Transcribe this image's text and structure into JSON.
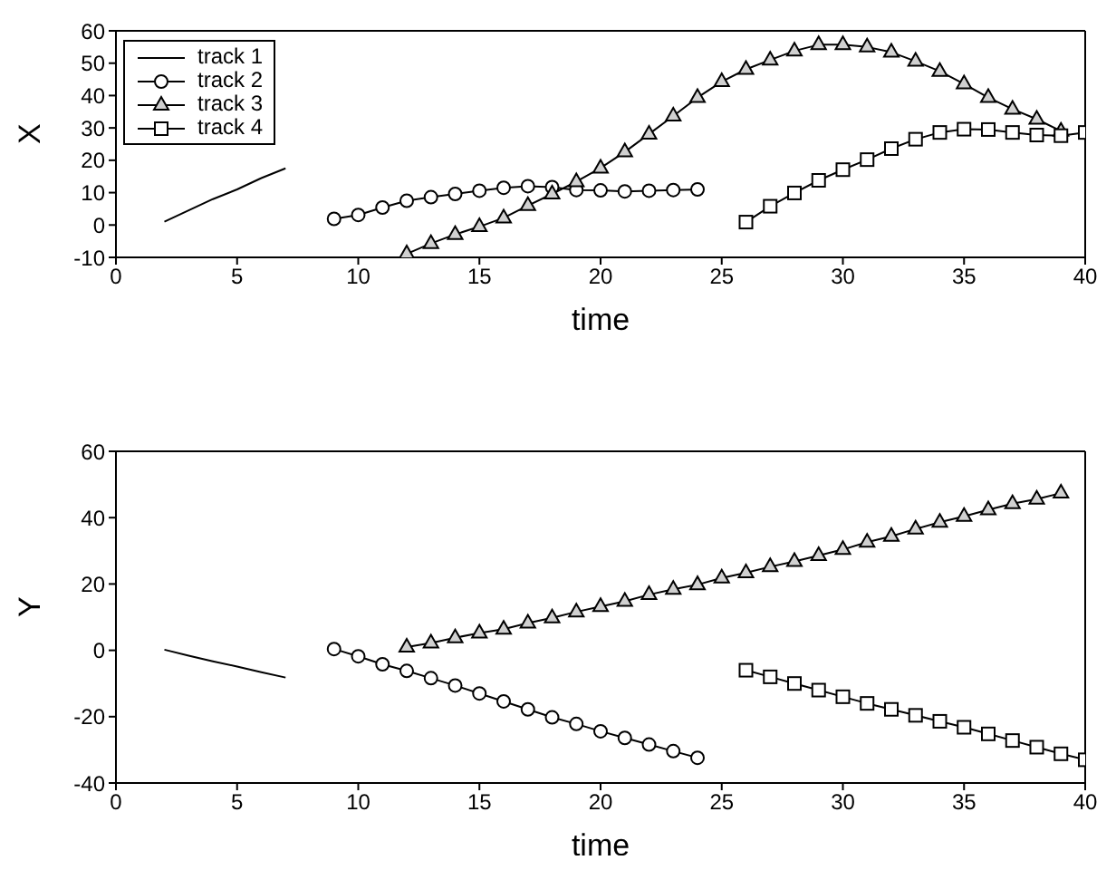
{
  "chart_data": [
    {
      "type": "line",
      "xlabel": "time",
      "ylabel": "X",
      "xlim": [
        0,
        40
      ],
      "ylim": [
        -10,
        60
      ],
      "xticks": [
        0,
        5,
        10,
        15,
        20,
        25,
        30,
        35,
        40
      ],
      "yticks": [
        -10,
        0,
        10,
        20,
        30,
        40,
        50,
        60
      ],
      "legend": "top left",
      "grid": false,
      "line_style": "solid",
      "series": [
        {
          "name": "track 1",
          "color": "#000000",
          "marker": "none",
          "x": [
            2,
            3,
            4,
            5,
            6,
            7
          ],
          "values": [
            1,
            4.5,
            8,
            11,
            14.5,
            17.5
          ]
        },
        {
          "name": "track 2",
          "color": "#000000",
          "marker": "circle",
          "x": [
            9,
            10,
            11,
            12,
            13,
            14,
            15,
            16,
            17,
            18,
            19,
            20,
            21,
            22,
            23,
            24
          ],
          "values": [
            1.9,
            3.1,
            5.4,
            7.5,
            8.6,
            9.6,
            10.6,
            11.5,
            12,
            11.7,
            10.8,
            10.7,
            10.4,
            10.6,
            10.8,
            11
          ]
        },
        {
          "name": "track 3",
          "color": "#000000",
          "marker": "triangle",
          "x": [
            12,
            13,
            14,
            15,
            16,
            17,
            18,
            19,
            20,
            21,
            22,
            23,
            24,
            25,
            26,
            27,
            28,
            29,
            30,
            31,
            32,
            33,
            34,
            35,
            36,
            37,
            38,
            39
          ],
          "values": [
            -8.9,
            -5.7,
            -2.9,
            -0.5,
            2.2,
            6,
            9.6,
            13.4,
            17.6,
            22.6,
            28.1,
            33.7,
            39.4,
            44.3,
            48.1,
            51,
            53.8,
            55.7,
            55.7,
            55,
            53.4,
            50.6,
            47.5,
            43.6,
            39.4,
            35.8,
            32.7,
            29
          ]
        },
        {
          "name": "track 4",
          "color": "#000000",
          "marker": "square",
          "x": [
            26,
            27,
            28,
            29,
            30,
            31,
            32,
            33,
            34,
            35,
            36,
            37,
            38,
            39,
            40
          ],
          "values": [
            0.9,
            5.8,
            9.9,
            13.8,
            17.1,
            20.2,
            23.6,
            26.5,
            28.6,
            29.6,
            29.5,
            28.6,
            27.8,
            27.6,
            28.6
          ]
        }
      ]
    },
    {
      "type": "line",
      "xlabel": "time",
      "ylabel": "Y",
      "xlim": [
        0,
        40
      ],
      "ylim": [
        -40,
        60
      ],
      "xticks": [
        0,
        5,
        10,
        15,
        20,
        25,
        30,
        35,
        40
      ],
      "yticks": [
        -40,
        -20,
        0,
        20,
        40,
        60
      ],
      "grid": false,
      "line_style": "solid",
      "series": [
        {
          "color": "#000000",
          "marker": "none",
          "x": [
            2,
            3,
            4,
            5,
            6,
            7
          ],
          "values": [
            0.2,
            -1.6,
            -3.3,
            -4.9,
            -6.6,
            -8.2
          ]
        },
        {
          "color": "#000000",
          "marker": "circle",
          "x": [
            9,
            10,
            11,
            12,
            13,
            14,
            15,
            16,
            17,
            18,
            19,
            20,
            21,
            22,
            23,
            24
          ],
          "values": [
            0.4,
            -1.8,
            -4.2,
            -6.2,
            -8.4,
            -10.6,
            -13,
            -15.4,
            -17.8,
            -20.2,
            -22.2,
            -24.4,
            -26.4,
            -28.4,
            -30.4,
            -32.4
          ]
        },
        {
          "color": "#000000",
          "marker": "triangle",
          "x": [
            12,
            13,
            14,
            15,
            16,
            17,
            18,
            19,
            20,
            21,
            22,
            23,
            24,
            25,
            26,
            27,
            28,
            29,
            30,
            31,
            32,
            33,
            34,
            35,
            36,
            37,
            38,
            39
          ],
          "values": [
            1,
            2.2,
            3.8,
            5.2,
            6.4,
            8.2,
            9.8,
            11.6,
            13.2,
            14.8,
            16.8,
            18.4,
            19.8,
            21.8,
            23.4,
            25.2,
            26.8,
            28.6,
            30.4,
            32.6,
            34.4,
            36.6,
            38.6,
            40.4,
            42.4,
            44.2,
            45.6,
            47.4
          ]
        },
        {
          "color": "#000000",
          "marker": "square",
          "x": [
            26,
            27,
            28,
            29,
            30,
            31,
            32,
            33,
            34,
            35,
            36,
            37,
            38,
            39,
            40
          ],
          "values": [
            -6,
            -8,
            -10,
            -12,
            -14,
            -16,
            -17.8,
            -19.6,
            -21.4,
            -23.2,
            -25.2,
            -27.2,
            -29.2,
            -31.2,
            -33
          ]
        }
      ]
    }
  ]
}
